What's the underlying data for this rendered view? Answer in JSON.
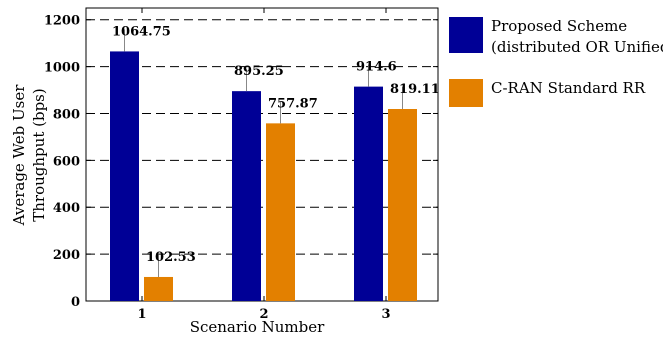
{
  "chart_data": {
    "type": "bar",
    "categories": [
      "1",
      "2",
      "3"
    ],
    "series": [
      {
        "name": "Proposed Scheme (distributed OR Unified)",
        "name_lines": [
          "Proposed Scheme",
          "(distributed OR Unified)"
        ],
        "values": [
          1064.75,
          895.25,
          914.6
        ],
        "labels": [
          "1064.75",
          "895.25",
          "914.6"
        ],
        "color": "#000096"
      },
      {
        "name": "C-RAN Standard RR",
        "name_lines": [
          "C-RAN Standard RR"
        ],
        "values": [
          102.53,
          757.87,
          819.11
        ],
        "labels": [
          "102.53",
          "757.87",
          "819.11"
        ],
        "color": "#e38000"
      }
    ],
    "xlabel": "Scenario Number",
    "ylabel_lines": [
      "Average Web User",
      "Throughput (bps)"
    ],
    "ylim": [
      0,
      1250
    ],
    "yticks": [
      0,
      200,
      400,
      600,
      800,
      1000,
      1200
    ],
    "grid": "horizontal dashed",
    "legend": "right"
  }
}
